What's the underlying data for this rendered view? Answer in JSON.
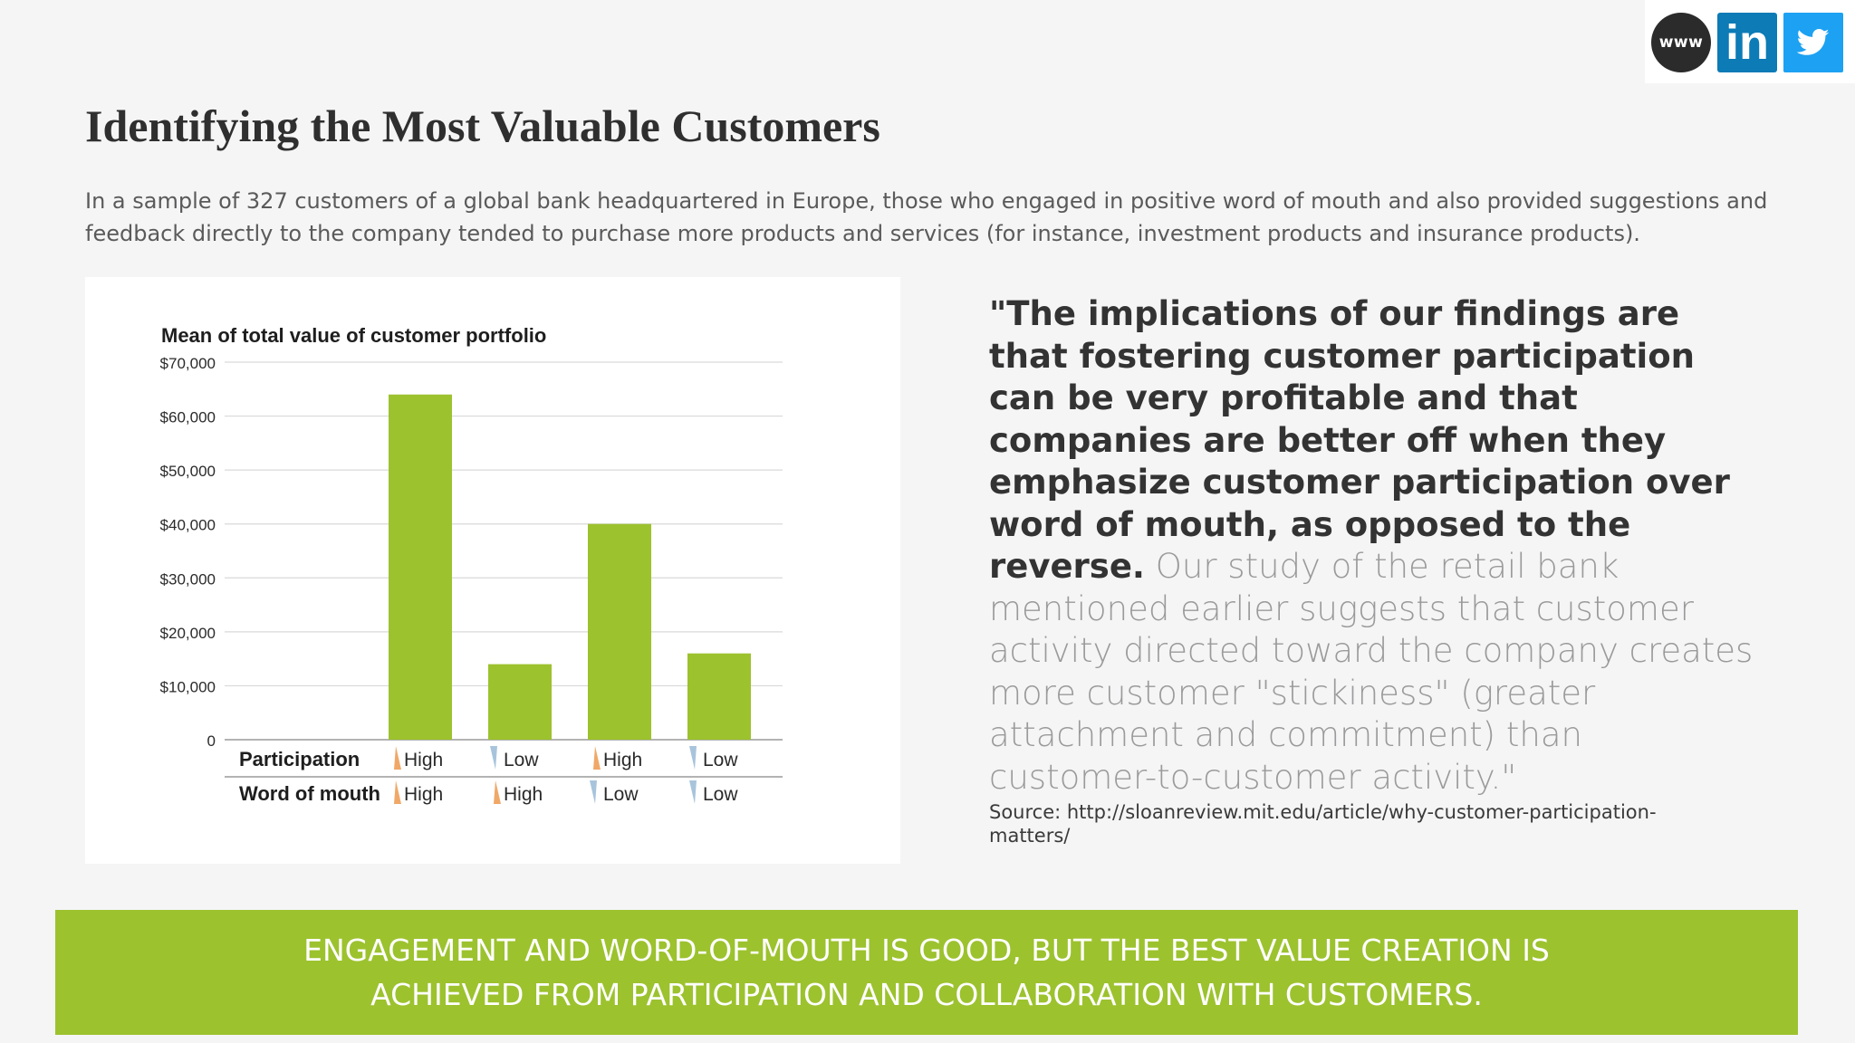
{
  "social": {
    "www_label": "www",
    "linkedin_label": "in",
    "twitter_icon": "twitter-bird-icon"
  },
  "title": "Identifying the Most Valuable Customers",
  "intro": "In a sample of 327 customers of a global bank headquartered in Europe, those who engaged in positive word of mouth and also provided suggestions and feedback directly to the company tended to purchase more products and services (for instance, investment products and insurance products).",
  "quote": {
    "bold": "\"The implications of our findings are that fostering customer participation can be very profitable and that companies are better off when they emphasize customer participation over word of mouth, as opposed to the reverse.",
    "light": " Our study of the retail bank mentioned earlier suggests that customer activity directed toward the company creates more customer \"stickiness\" (greater attachment and commitment) than customer-to-customer activity.\""
  },
  "source": "Source: http://sloanreview.mit.edu/article/why-customer-participation-matters/",
  "banner": "ENGAGEMENT AND WORD-OF-MOUTH IS GOOD, BUT THE BEST VALUE CREATION IS ACHIEVED FROM PARTICIPATION AND COLLABORATION WITH CUSTOMERS.",
  "colors": {
    "bar": "#9cc22e",
    "banner": "#9cc22e",
    "linkedin": "#0c7bb6",
    "twitter": "#1da1f2",
    "arrow_up": "#f0a868",
    "arrow_down": "#a8c4dc"
  },
  "chart_data": {
    "type": "bar",
    "title": "Mean of total value of customer portfolio",
    "xlabel": "",
    "ylabel": "",
    "ylim": [
      0,
      70000
    ],
    "y_ticks": [
      0,
      10000,
      20000,
      30000,
      40000,
      50000,
      60000,
      70000
    ],
    "y_tick_labels": [
      "0",
      "$10,000",
      "$20,000",
      "$30,000",
      "$40,000",
      "$50,000",
      "$60,000",
      "$70,000"
    ],
    "grid": true,
    "row_labels": [
      "Participation",
      "Word of mouth"
    ],
    "categories": [
      {
        "participation": "High",
        "participation_dir": "up",
        "word_of_mouth": "High",
        "word_of_mouth_dir": "up"
      },
      {
        "participation": "Low",
        "participation_dir": "down",
        "word_of_mouth": "High",
        "word_of_mouth_dir": "up"
      },
      {
        "participation": "High",
        "participation_dir": "up",
        "word_of_mouth": "Low",
        "word_of_mouth_dir": "down"
      },
      {
        "participation": "Low",
        "participation_dir": "down",
        "word_of_mouth": "Low",
        "word_of_mouth_dir": "down"
      }
    ],
    "values": [
      64000,
      14000,
      40000,
      16000
    ]
  }
}
